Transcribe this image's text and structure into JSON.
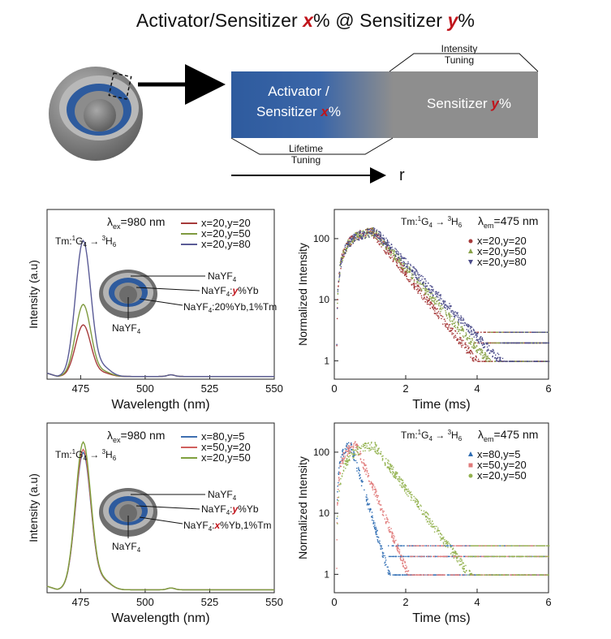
{
  "title": {
    "prefix": "Activator/Sensitizer ",
    "x_var": "x",
    "middle": "% @ Sensitizer ",
    "y_var": "y",
    "suffix": "%"
  },
  "schematic": {
    "core_label_line1": "Activator /",
    "core_label_line2": "Sensitizer ",
    "core_var": "x",
    "core_pct": "%",
    "shell_label": "Sensitizer ",
    "shell_var": "y",
    "shell_pct": "%",
    "intensity_tuning_1": "Intensity",
    "intensity_tuning_2": "Tuning",
    "lifetime_tuning_1": "Lifetime",
    "lifetime_tuning_2": "Tuning",
    "r_label": "r",
    "colors": {
      "core_blue": "#2e5b9e",
      "shell_gray": "#8e8e8e",
      "red_var": "#c0141b"
    }
  },
  "chart_data": [
    {
      "id": "top-left",
      "type": "line",
      "title": "λex=980 nm",
      "excitation": {
        "symbol": "λ",
        "sub": "ex",
        "value": "=980 nm"
      },
      "transition": {
        "prefix": "Tm:",
        "sup1": "1",
        "from": "G",
        "from_sub": "4",
        "arrow": " → ",
        "sup2": "3",
        "to": "H",
        "to_sub": "6"
      },
      "xlabel": "Wavelength (nm)",
      "ylabel": "Intensity (a.u)",
      "xlim": [
        462,
        550
      ],
      "xticks": [
        "475",
        "500",
        "525",
        "550"
      ],
      "ylim": [
        0,
        1.25
      ],
      "series": [
        {
          "name": "x=20,y=20",
          "color": "#a63a3a",
          "peak": 0.38
        },
        {
          "name": "x=20,y=50",
          "color": "#7f9a3f",
          "peak": 0.53
        },
        {
          "name": "x=20,y=80",
          "color": "#5a5b96",
          "peak": 1.0
        }
      ],
      "inset_labels": [
        "NaYF4",
        "NaYF4:y%Yb",
        "NaYF4:20%Yb,1%Tm",
        "NaYF4"
      ],
      "inset": {
        "shell_outer": {
          "base": "NaYF",
          "sub": "4"
        },
        "shell_mid": {
          "base": "NaYF",
          "sub": "4",
          "sep": ":",
          "var": "y",
          "rest": "%Yb"
        },
        "shell_inner": {
          "base": "NaYF",
          "sub": "4",
          "sep": ":",
          "rest": "20%Yb,1%Tm"
        },
        "core": {
          "base": "NaYF",
          "sub": "4"
        }
      }
    },
    {
      "id": "top-right",
      "type": "scatter",
      "title": "Tm:1G4 → 3H6 λem=475 nm",
      "transition": {
        "prefix": "Tm:",
        "sup1": "1",
        "from": "G",
        "from_sub": "4",
        "arrow": " → ",
        "sup2": "3",
        "to": "H",
        "to_sub": "6"
      },
      "emission": {
        "symbol": "λ",
        "sub": "em",
        "value": "=475 nm"
      },
      "xlabel": "Time (ms)",
      "ylabel": "Normalized Intensity",
      "xlim": [
        0,
        6
      ],
      "xticks": [
        "0",
        "2",
        "4",
        "6"
      ],
      "yscale": "log",
      "ylim": [
        0.5,
        300
      ],
      "yticks": [
        "1",
        "10",
        "100"
      ],
      "series": [
        {
          "name": "x=20,y=20",
          "color": "#a63a3a",
          "marker": "circle",
          "rise": 0.35,
          "peak_t": 1.05,
          "decay": 0.6
        },
        {
          "name": "x=20,y=50",
          "color": "#8aa34a",
          "marker": "triangle",
          "rise": 0.35,
          "peak_t": 1.1,
          "decay": 0.66
        },
        {
          "name": "x=20,y=80",
          "color": "#4c4d8a",
          "marker": "triangle-down",
          "rise": 0.35,
          "peak_t": 1.15,
          "decay": 0.72
        }
      ]
    },
    {
      "id": "bottom-left",
      "type": "line",
      "title": "λex=980 nm",
      "excitation": {
        "symbol": "λ",
        "sub": "ex",
        "value": "=980 nm"
      },
      "transition": {
        "prefix": "Tm:",
        "sup1": "1",
        "from": "G",
        "from_sub": "4",
        "arrow": " → ",
        "sup2": "3",
        "to": "H",
        "to_sub": "6"
      },
      "xlabel": "Wavelength (nm)",
      "ylabel": "Intensity (a.u)",
      "xlim": [
        462,
        550
      ],
      "xticks": [
        "475",
        "500",
        "525",
        "550"
      ],
      "ylim": [
        0,
        1.15
      ],
      "series": [
        {
          "name": "x=80,y=5",
          "color": "#3e6fb0",
          "peak": 0.93
        },
        {
          "name": "x=50,y=20",
          "color": "#d0605e",
          "peak": 0.95
        },
        {
          "name": "x=20,y=50",
          "color": "#7fa03e",
          "peak": 1.0
        }
      ],
      "inset_labels": [
        "NaYF4",
        "NaYF4:y%Yb",
        "NaYF4:x%Yb,1%Tm",
        "NaYF4"
      ],
      "inset": {
        "shell_outer": {
          "base": "NaYF",
          "sub": "4"
        },
        "shell_mid": {
          "base": "NaYF",
          "sub": "4",
          "sep": ":",
          "var": "y",
          "rest": "%Yb"
        },
        "shell_inner": {
          "base": "NaYF",
          "sub": "4",
          "sep": ":",
          "var": "x",
          "rest": "%Yb,1%Tm"
        },
        "core": {
          "base": "NaYF",
          "sub": "4"
        }
      }
    },
    {
      "id": "bottom-right",
      "type": "scatter",
      "title": "Tm:1G4 → 3H6 λem=475 nm",
      "transition": {
        "prefix": "Tm:",
        "sup1": "1",
        "from": "G",
        "from_sub": "4",
        "arrow": " → ",
        "sup2": "3",
        "to": "H",
        "to_sub": "6"
      },
      "emission": {
        "symbol": "λ",
        "sub": "em",
        "value": "=475 nm"
      },
      "xlabel": "Time (ms)",
      "ylabel": "Normalized Intensity",
      "xlim": [
        0,
        6
      ],
      "xticks": [
        "0",
        "2",
        "4",
        "6"
      ],
      "yscale": "log",
      "ylim": [
        0.5,
        300
      ],
      "yticks": [
        "1",
        "10",
        "100"
      ],
      "series": [
        {
          "name": "x=80,y=5",
          "color": "#2f6db3",
          "marker": "triangle",
          "rise": 0.15,
          "peak_t": 0.45,
          "decay": 0.22
        },
        {
          "name": "x=50,y=20",
          "color": "#e07a7a",
          "marker": "square",
          "rise": 0.2,
          "peak_t": 0.6,
          "decay": 0.3
        },
        {
          "name": "x=20,y=50",
          "color": "#93b24f",
          "marker": "circle",
          "rise": 0.4,
          "peak_t": 1.1,
          "decay": 0.55
        }
      ]
    }
  ]
}
